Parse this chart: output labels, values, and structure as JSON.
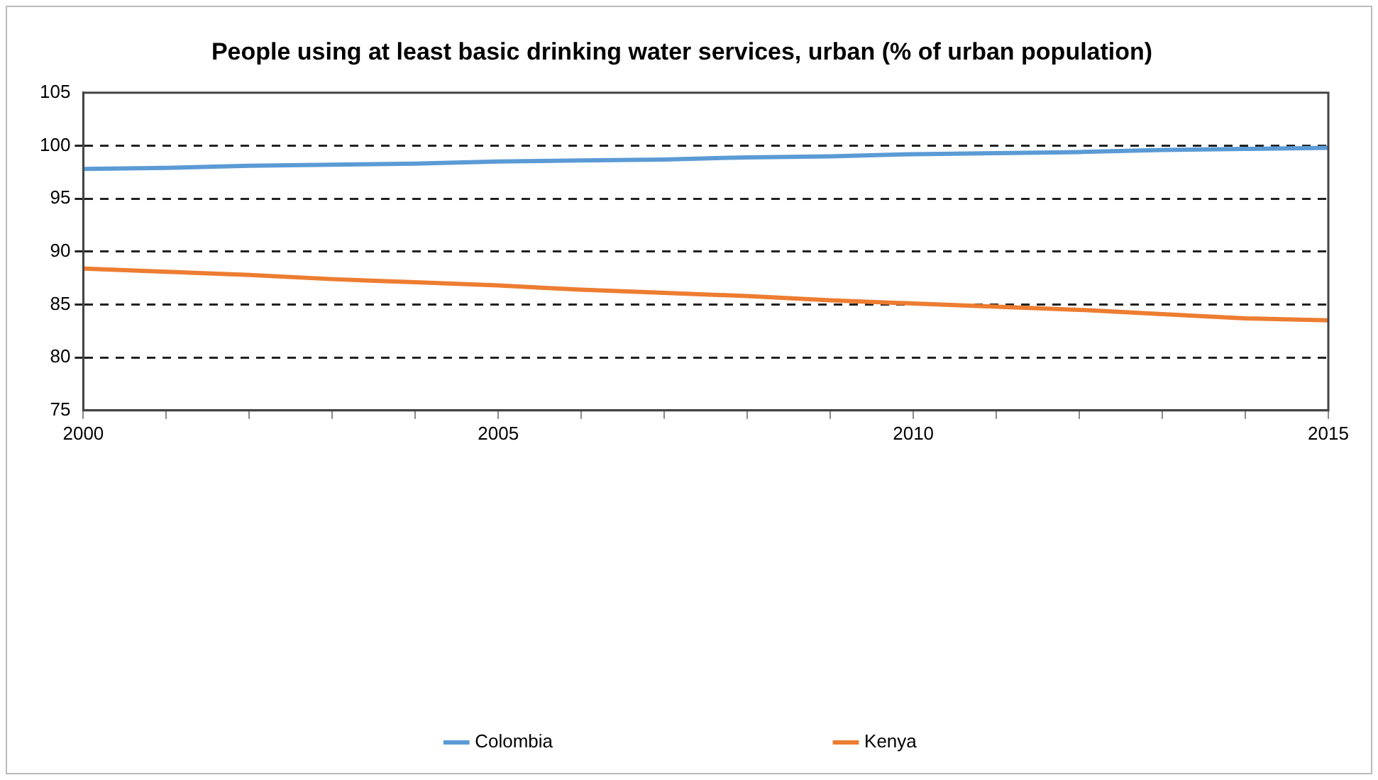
{
  "chart_data": {
    "type": "line",
    "title": "People using at least basic drinking water services, urban (% of urban population)",
    "x": [
      2000,
      2001,
      2002,
      2003,
      2004,
      2005,
      2006,
      2007,
      2008,
      2009,
      2010,
      2011,
      2012,
      2013,
      2014,
      2015
    ],
    "series": [
      {
        "name": "Colombia",
        "color": "#5b9bd5",
        "values": [
          97.8,
          97.9,
          98.1,
          98.2,
          98.3,
          98.5,
          98.6,
          98.7,
          98.9,
          99.0,
          99.2,
          99.3,
          99.4,
          99.6,
          99.7,
          99.8
        ]
      },
      {
        "name": "Kenya",
        "color": "#ed7d31",
        "values": [
          88.4,
          88.1,
          87.8,
          87.4,
          87.1,
          86.8,
          86.4,
          86.1,
          85.8,
          85.4,
          85.1,
          84.8,
          84.5,
          84.1,
          83.7,
          83.5
        ]
      }
    ],
    "xlim": [
      2000,
      2015
    ],
    "xticks": [
      2000,
      {
        "value": 2001,
        "label": null
      },
      {
        "value": 2002,
        "label": null
      },
      {
        "value": 2003,
        "label": null
      },
      {
        "value": 2004,
        "label": null
      },
      2005,
      {
        "value": 2006,
        "label": null
      },
      {
        "value": 2007,
        "label": null
      },
      {
        "value": 2008,
        "label": null
      },
      {
        "value": 2009,
        "label": null
      },
      2010,
      {
        "value": 2011,
        "label": null
      },
      {
        "value": 2012,
        "label": null
      },
      {
        "value": 2013,
        "label": null
      },
      {
        "value": 2014,
        "label": null
      },
      2015
    ],
    "ylim": [
      75,
      105
    ],
    "yticks": [
      75,
      80,
      85,
      90,
      95,
      100,
      105
    ],
    "grid": "y",
    "line_style": "solid",
    "marker": "none",
    "legend": "bottom"
  }
}
